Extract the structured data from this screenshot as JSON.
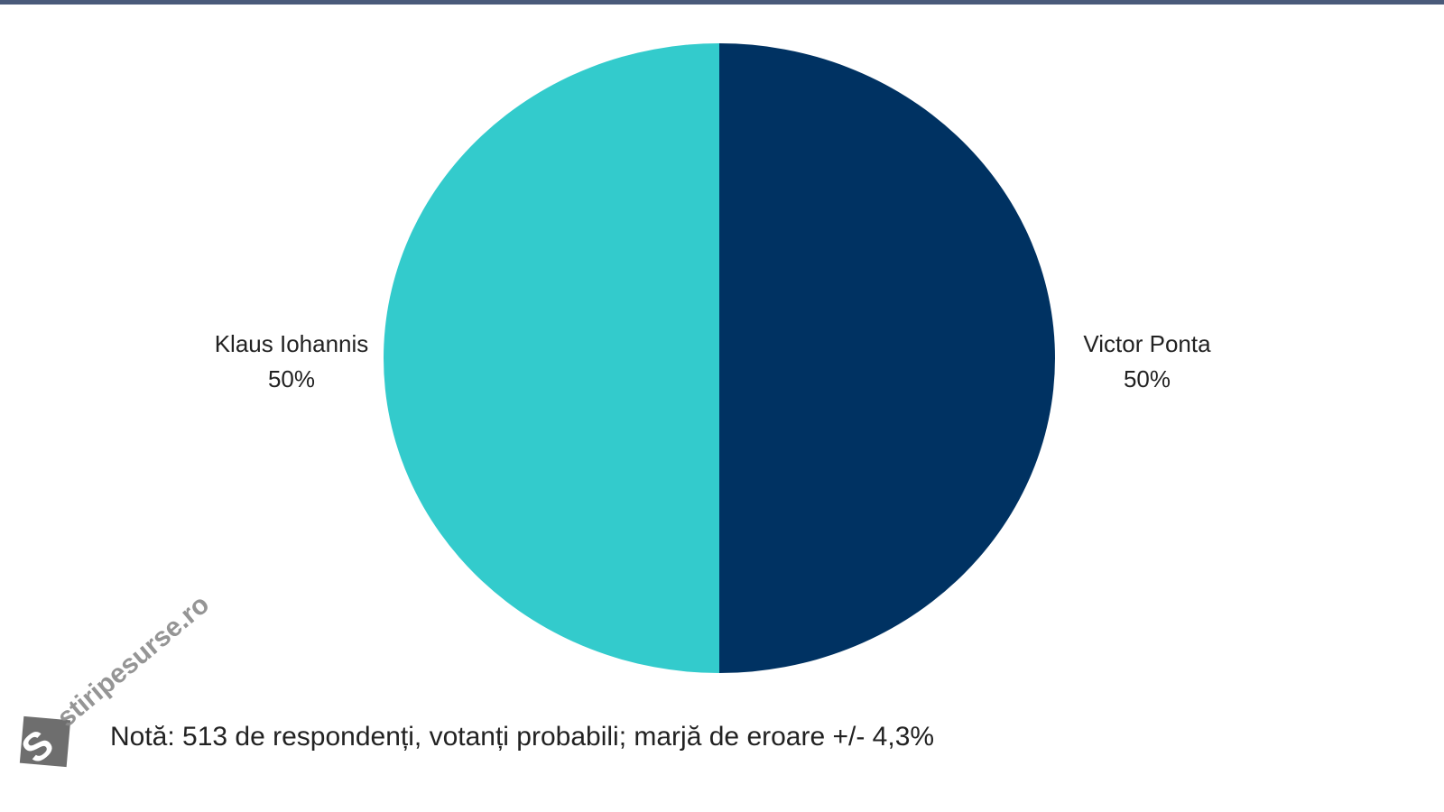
{
  "chart_data": {
    "type": "pie",
    "categories": [
      "Victor Ponta",
      "Klaus Iohannis"
    ],
    "values": [
      50,
      50
    ],
    "value_labels": [
      "50%",
      "50%"
    ],
    "colors": [
      "#003262",
      "#33cbcc"
    ],
    "note": "Notă: 513 de respondenți, votanți probabili; marjă de eroare +/- 4,3%",
    "watermark": "stiripesurse.ro"
  }
}
